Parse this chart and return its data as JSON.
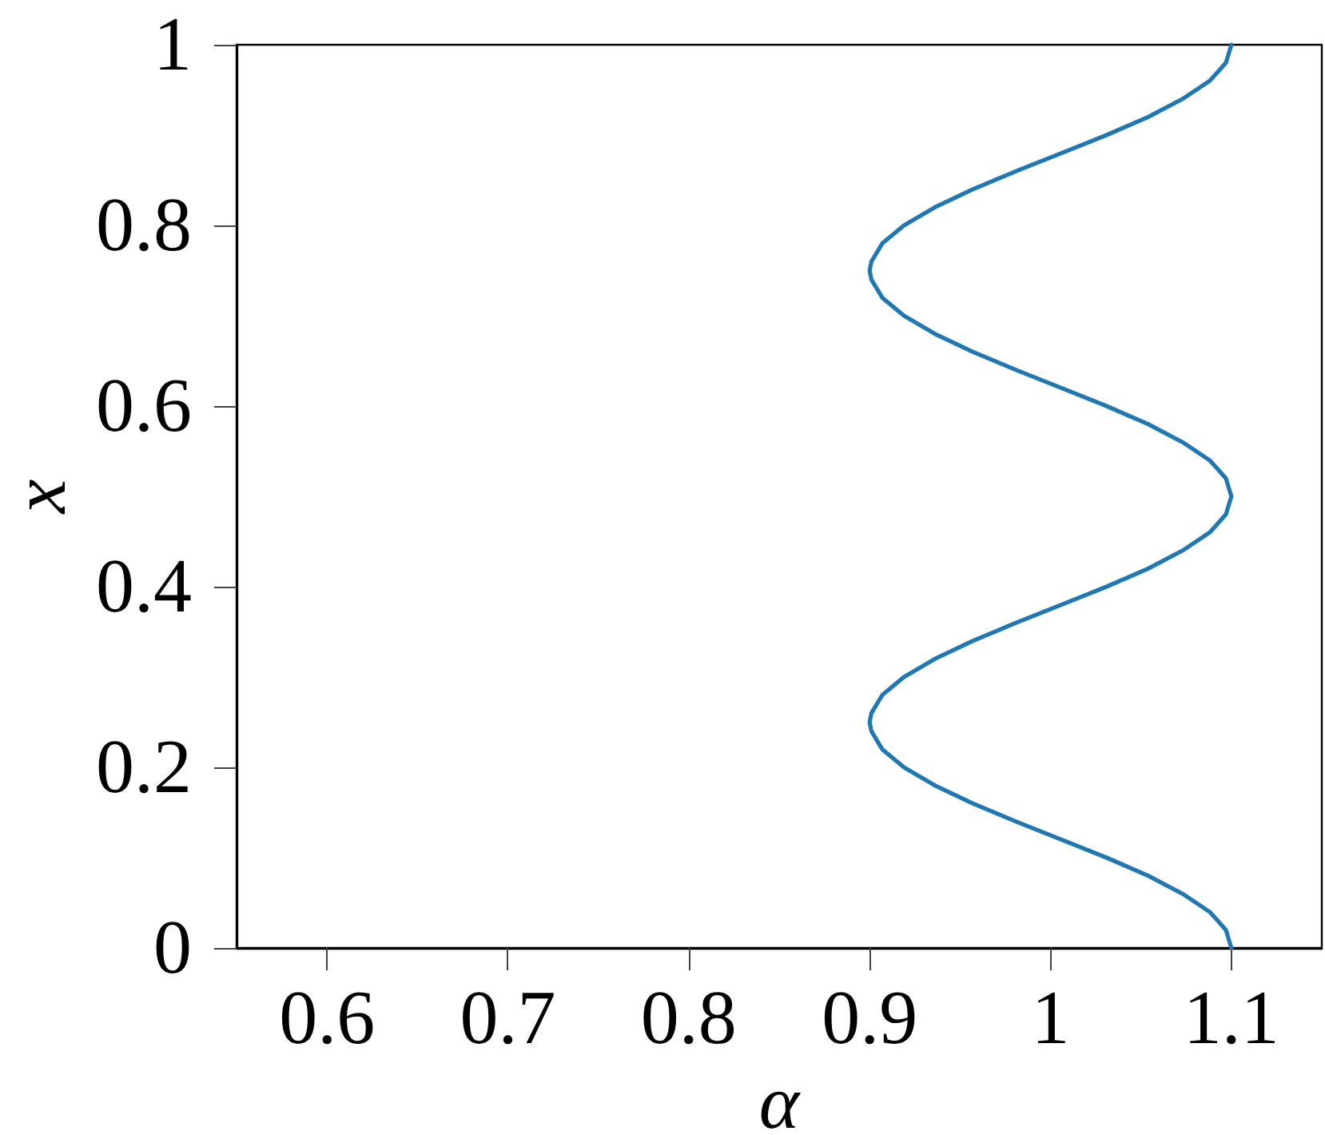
{
  "chart_data": {
    "type": "line",
    "xlabel": "α",
    "ylabel": "x",
    "color": "#1f77b4",
    "x": [
      1.1,
      1.097,
      1.088,
      1.073,
      1.054,
      1.031,
      1.006,
      0.981,
      0.957,
      0.936,
      0.919,
      0.907,
      0.901,
      0.9,
      0.901,
      0.907,
      0.919,
      0.936,
      0.957,
      0.981,
      1.006,
      1.031,
      1.054,
      1.073,
      1.088,
      1.097,
      1.1,
      1.097,
      1.088,
      1.073,
      1.054,
      1.031,
      1.006,
      0.981,
      0.957,
      0.936,
      0.919,
      0.907,
      0.901,
      0.9,
      0.901,
      0.907,
      0.919,
      0.936,
      0.957,
      0.981,
      1.006,
      1.031,
      1.054,
      1.073,
      1.088,
      1.097,
      1.1
    ],
    "values": [
      0,
      0.02,
      0.04,
      0.06,
      0.08,
      0.1,
      0.12,
      0.14,
      0.16,
      0.18,
      0.2,
      0.22,
      0.24,
      0.25,
      0.26,
      0.28,
      0.3,
      0.32,
      0.34,
      0.36,
      0.38,
      0.4,
      0.42,
      0.44,
      0.46,
      0.48,
      0.5,
      0.52,
      0.54,
      0.56,
      0.58,
      0.6,
      0.62,
      0.64,
      0.66,
      0.68,
      0.7,
      0.72,
      0.74,
      0.75,
      0.76,
      0.78,
      0.8,
      0.82,
      0.84,
      0.86,
      0.88,
      0.9,
      0.92,
      0.94,
      0.96,
      0.98,
      1
    ],
    "xlim": [
      0.55,
      1.15
    ],
    "ylim": [
      0,
      1
    ],
    "xticks": [
      0.6,
      0.7,
      0.8,
      0.9,
      1,
      1.1
    ],
    "yticks": [
      0,
      0.2,
      0.4,
      0.6,
      0.8,
      1
    ]
  }
}
